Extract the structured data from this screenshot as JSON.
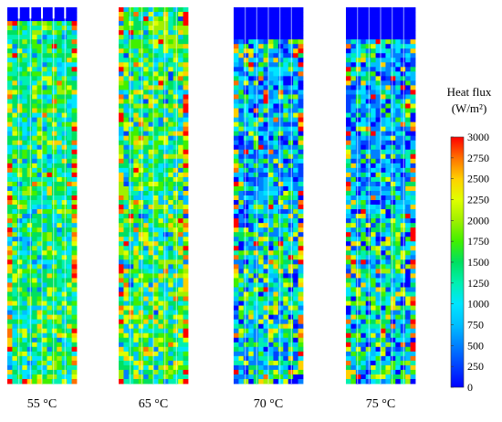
{
  "panels": [
    {
      "label": "55 °C",
      "uncovered_top_fraction": 0.03
    },
    {
      "label": "65 °C",
      "uncovered_top_fraction": 0.0
    },
    {
      "label": "70 °C",
      "uncovered_top_fraction": 0.08
    },
    {
      "label": "75 °C",
      "uncovered_top_fraction": 0.08
    }
  ],
  "colorbar": {
    "title_line1": "Heat flux",
    "title_line2": "(W/m²)",
    "min": 0,
    "max": 3000,
    "ticks": [
      "3000",
      "2750",
      "2500",
      "2250",
      "2000",
      "1750",
      "1500",
      "1250",
      "1000",
      "750",
      "500",
      "250",
      "0"
    ],
    "colors": [
      "#0000ff",
      "#0040ff",
      "#0080ff",
      "#00bfff",
      "#00e5ff",
      "#00f0b0",
      "#00e060",
      "#40f000",
      "#a0f000",
      "#e0ff00",
      "#ffd000",
      "#ff7000",
      "#ff0000"
    ]
  }
}
